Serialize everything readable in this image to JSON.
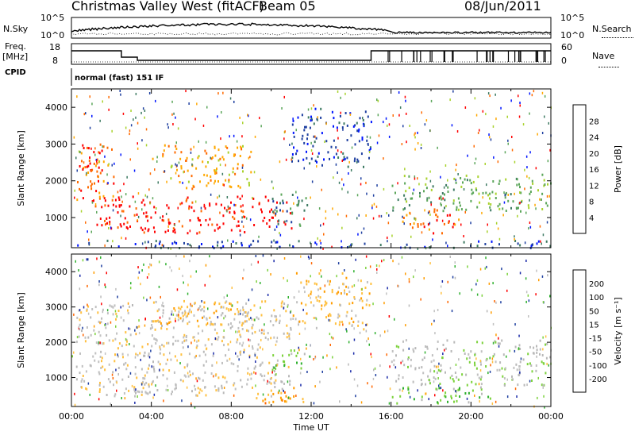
{
  "header": {
    "title": "Christmas Valley West (fitACF)",
    "beam": "Beam 05",
    "date": "08/Jun/2011"
  },
  "sidebar": {
    "nsky_label": "N.Sky",
    "nsearch_label": "N.Search",
    "freq_label": "Freq.",
    "freq_unit": "[MHz]",
    "nave_label": "Nave",
    "cpid_label": "CPID",
    "nsky_ticks": [
      "10^5",
      "10^0"
    ],
    "freq_ticks": [
      "18",
      "8"
    ],
    "nave_ticks": [
      "60",
      "0"
    ],
    "cpid_text": "normal (fast) 151 IF"
  },
  "colors": {
    "power": [
      "#0015ff",
      "#1e3fa0",
      "#3d7a62",
      "#5ba65a",
      "#a8d22c",
      "#ffa800",
      "#ff6a00",
      "#ff0000"
    ],
    "velocity": [
      "#ff0000",
      "#ff6600",
      "#ff9c00",
      "#ffc040",
      "#c0c0c0",
      "#b8b8b8",
      "#7cd23c",
      "#2eb02e",
      "#1a2aa8",
      "#1e3fa0"
    ]
  },
  "chart_data": [
    {
      "type": "heatmap",
      "panel": "power",
      "ylabel": "Slant Range [km]",
      "ylim": [
        180,
        4500
      ],
      "yticks": [
        "4000",
        "3000",
        "2000",
        "1000"
      ],
      "colorbar_label": "Power [dB]",
      "colorbar_ticks": [
        "28",
        "24",
        "20",
        "16",
        "12",
        "8",
        "4"
      ],
      "regions": [
        {
          "t0": 0.2,
          "t1": 2.2,
          "r0": 1500,
          "r1": 3050,
          "level": 6
        },
        {
          "t0": 0.5,
          "t1": 1.5,
          "r0": 2200,
          "r1": 3000,
          "level": 7
        },
        {
          "t0": 1.0,
          "t1": 11.0,
          "r0": 600,
          "r1": 1600,
          "level": 7
        },
        {
          "t0": 4.0,
          "t1": 9.0,
          "r0": 1800,
          "r1": 3000,
          "level": 5
        },
        {
          "t0": 10.0,
          "t1": 12.0,
          "r0": 800,
          "r1": 1700,
          "level": 2
        },
        {
          "t0": 11.0,
          "t1": 15.0,
          "r0": 2400,
          "r1": 4000,
          "level": 1
        },
        {
          "t0": 16.0,
          "t1": 24.0,
          "r0": 1200,
          "r1": 2200,
          "level": 3
        },
        {
          "t0": 16.5,
          "t1": 19.5,
          "r0": 600,
          "r1": 1300,
          "level": 6
        },
        {
          "t0": 0.0,
          "t1": 24.0,
          "r0": 200,
          "r1": 400,
          "level": 1
        }
      ]
    },
    {
      "type": "heatmap",
      "panel": "velocity",
      "ylabel": "Slant Range [km]",
      "ylim": [
        180,
        4500
      ],
      "yticks": [
        "4000",
        "3000",
        "2000",
        "1000"
      ],
      "colorbar_label": "Velocity [m s⁻¹]",
      "colorbar_ticks": [
        "200",
        "100",
        "50",
        "15",
        "-15",
        "-50",
        "-100",
        "-200"
      ],
      "xlabel": "Time UT",
      "xticks": [
        "00:00",
        "04:00",
        "08:00",
        "12:00",
        "16:00",
        "20:00",
        "00:00"
      ],
      "regions": [
        {
          "t0": 0.2,
          "t1": 11.0,
          "r0": 500,
          "r1": 3200,
          "level": 4
        },
        {
          "t0": 4.0,
          "t1": 9.0,
          "r0": 2400,
          "r1": 3200,
          "level": 3
        },
        {
          "t0": 9.0,
          "t1": 12.0,
          "r0": 300,
          "r1": 800,
          "level": 2
        },
        {
          "t0": 10.0,
          "t1": 12.0,
          "r0": 1200,
          "r1": 1800,
          "level": 6
        },
        {
          "t0": 16.0,
          "t1": 24.0,
          "r0": 800,
          "r1": 2100,
          "level": 5
        },
        {
          "t0": 16.0,
          "t1": 21.0,
          "r0": 300,
          "r1": 800,
          "level": 6
        },
        {
          "t0": 11.0,
          "t1": 15.0,
          "r0": 2400,
          "r1": 4000,
          "level": 3
        }
      ]
    }
  ]
}
